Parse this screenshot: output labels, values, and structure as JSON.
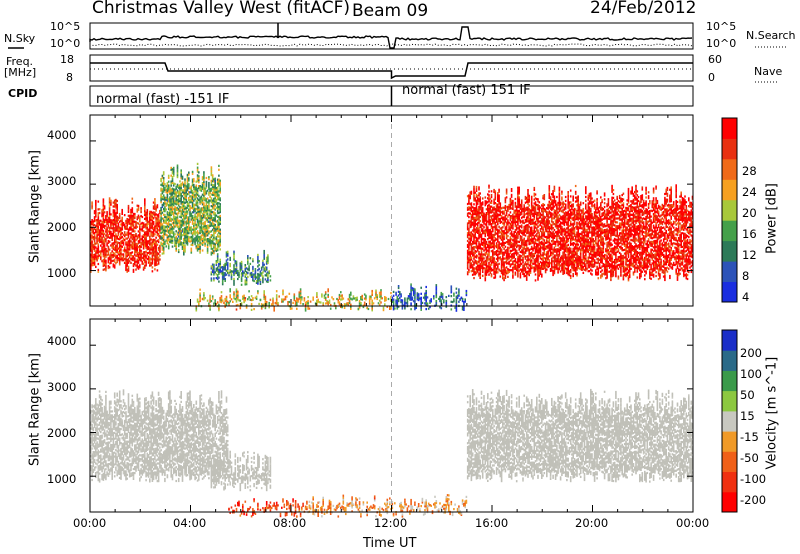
{
  "header": {
    "radar": "Christmas Valley West (fitACF)",
    "beam": "Beam 09",
    "date": "24/Feb/2012"
  },
  "noise_panel": {
    "left_label": "N.Sky",
    "left_ticks": [
      "10^5",
      "10^0"
    ],
    "right_ticks": [
      "10^5",
      "10^0"
    ],
    "right_label": "N.Search"
  },
  "freq_panel": {
    "left_label_1": "Freq.",
    "left_label_2": "[MHz]",
    "left_ticks": [
      "18",
      "8"
    ],
    "right_ticks": [
      "60",
      "0"
    ],
    "right_label": "Nave"
  },
  "cpid_panel": {
    "label": "CPID",
    "mode_1": "normal (fast) -151 IF",
    "mode_2": "normal (fast) 151 IF"
  },
  "chart_data": [
    {
      "type": "heatmap",
      "title": "",
      "ylabel": "Slant Range [km]",
      "xlabel": "",
      "ylim": [
        180,
        4600
      ],
      "yticks": [
        "1000",
        "2000",
        "3000",
        "4000"
      ],
      "xlim": [
        "00:00",
        "24:00"
      ],
      "colorbar": {
        "label": "Power [dB]",
        "range": [
          0,
          32
        ],
        "ticks": [
          "4",
          "8",
          "12",
          "16",
          "20",
          "24",
          "28"
        ],
        "colors": [
          "#1a2ee0",
          "#2c53b8",
          "#2c7a58",
          "#44a04a",
          "#a8c83a",
          "#f6a020",
          "#f06a18",
          "#e83010",
          "#ff0000"
        ]
      },
      "echo_regions": [
        {
          "start_h": 0.0,
          "end_h": 2.8,
          "range_lo_km": 1100,
          "range_hi_km": 2700,
          "power_db": 28
        },
        {
          "start_h": 2.8,
          "end_h": 5.2,
          "range_lo_km": 1500,
          "range_hi_km": 3500,
          "power_db": 14
        },
        {
          "start_h": 4.8,
          "end_h": 7.2,
          "range_lo_km": 800,
          "range_hi_km": 1500,
          "power_db": 10
        },
        {
          "start_h": 4.2,
          "end_h": 12.0,
          "range_lo_km": 200,
          "range_hi_km": 600,
          "power_db": 18
        },
        {
          "start_h": 12.0,
          "end_h": 15.0,
          "range_lo_km": 200,
          "range_hi_km": 700,
          "power_db": 6
        },
        {
          "start_h": 15.0,
          "end_h": 24.0,
          "range_lo_km": 900,
          "range_hi_km": 3000,
          "power_db": 30
        }
      ]
    },
    {
      "type": "heatmap",
      "title": "",
      "ylabel": "Slant Range [km]",
      "xlabel": "Time UT",
      "ylim": [
        180,
        4600
      ],
      "yticks": [
        "1000",
        "2000",
        "3000",
        "4000"
      ],
      "xticks": [
        "00:00",
        "04:00",
        "08:00",
        "12:00",
        "16:00",
        "20:00",
        "00:00"
      ],
      "colorbar": {
        "label": "Velocity [m s^-1]",
        "range": [
          -250,
          250
        ],
        "ticks": [
          "200",
          "100",
          "50",
          "15",
          "-15",
          "-50",
          "-100",
          "-200"
        ],
        "colors": [
          "#ff0000",
          "#f03010",
          "#f06018",
          "#f09a28",
          "#c8c8c0",
          "#8cc840",
          "#3a9a4a",
          "#2a6a88",
          "#1a2ec8"
        ]
      },
      "ground_scatter_color": "#c0c0b8",
      "echo_regions": [
        {
          "start_h": 0.0,
          "end_h": 5.5,
          "range_lo_km": 1000,
          "range_hi_km": 3000,
          "velocity_ms": 0
        },
        {
          "start_h": 4.8,
          "end_h": 7.2,
          "range_lo_km": 800,
          "range_hi_km": 1600,
          "velocity_ms": 0
        },
        {
          "start_h": 5.5,
          "end_h": 8.5,
          "range_lo_km": 200,
          "range_hi_km": 500,
          "velocity_ms": -150
        },
        {
          "start_h": 8.5,
          "end_h": 15.0,
          "range_lo_km": 200,
          "range_hi_km": 600,
          "velocity_ms": -60
        },
        {
          "start_h": 15.0,
          "end_h": 24.0,
          "range_lo_km": 1000,
          "range_hi_km": 3000,
          "velocity_ms": 0
        }
      ]
    }
  ],
  "x_axis_label": "Time UT",
  "x_ticks": [
    "00:00",
    "04:00",
    "08:00",
    "12:00",
    "16:00",
    "20:00",
    "00:00"
  ]
}
